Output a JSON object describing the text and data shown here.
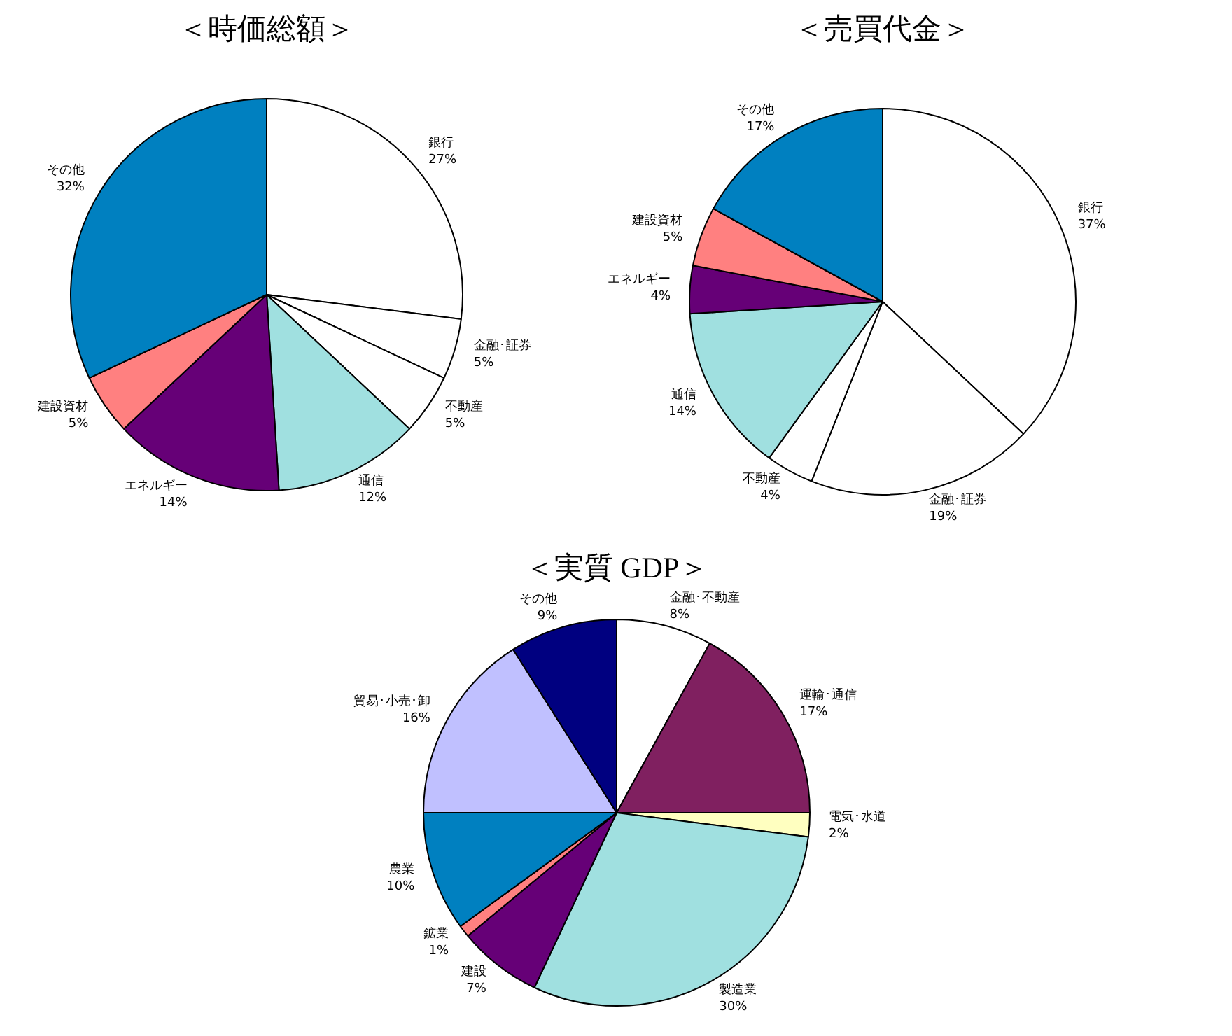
{
  "chart_data": [
    {
      "type": "pie",
      "title": "＜時価総額＞",
      "categories": [
        "銀行",
        "金融･証券",
        "不動産",
        "通信",
        "エネルギー",
        "建設資材",
        "その他"
      ],
      "values": [
        27,
        5,
        5,
        12,
        14,
        5,
        32
      ],
      "value_labels": [
        "27%",
        "5%",
        "5%",
        "12%",
        "14%",
        "5%",
        "32%"
      ],
      "colors": [
        "#ffffff",
        "#ffffff",
        "#ffffff",
        "#a0e0e0",
        "#660077",
        "#ff8080",
        "#0080c0"
      ]
    },
    {
      "type": "pie",
      "title": "＜売買代金＞",
      "categories": [
        "銀行",
        "金融･証券",
        "不動産",
        "通信",
        "エネルギー",
        "建設資材",
        "その他"
      ],
      "values": [
        37,
        19,
        4,
        14,
        4,
        5,
        17
      ],
      "value_labels": [
        "37%",
        "19%",
        "4%",
        "14%",
        "4%",
        "5%",
        "17%"
      ],
      "colors": [
        "#ffffff",
        "#ffffff",
        "#ffffff",
        "#a0e0e0",
        "#660077",
        "#ff8080",
        "#0080c0"
      ]
    },
    {
      "type": "pie",
      "title": "＜実質 GDP＞",
      "categories": [
        "金融･不動産",
        "運輸･通信",
        "電気･水道",
        "製造業",
        "建設",
        "鉱業",
        "農業",
        "貿易･小売･卸",
        "その他"
      ],
      "values": [
        8,
        17,
        2,
        30,
        7,
        1,
        10,
        16,
        9
      ],
      "value_labels": [
        "8%",
        "17%",
        "2%",
        "30%",
        "7%",
        "1%",
        "10%",
        "16%",
        "9%"
      ],
      "colors": [
        "#ffffff",
        "#802060",
        "#ffffc0",
        "#a0e0e0",
        "#660077",
        "#ff8080",
        "#0080c0",
        "#c0c0ff",
        "#000080"
      ]
    }
  ]
}
